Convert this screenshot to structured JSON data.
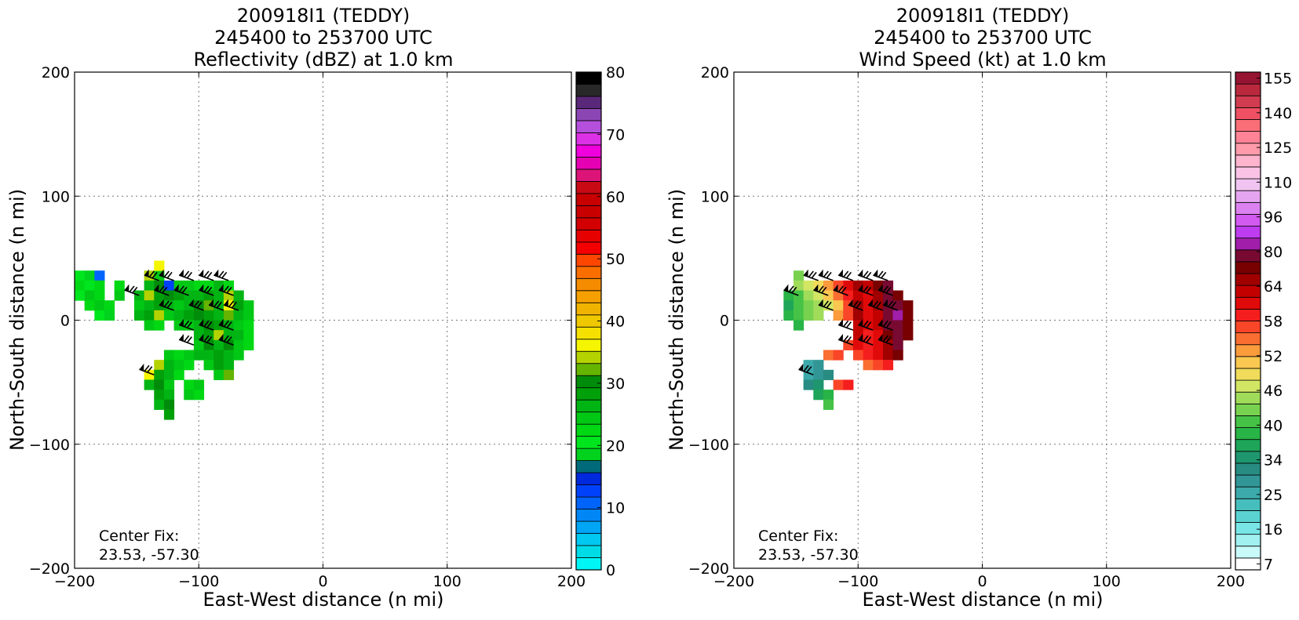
{
  "panels": [
    {
      "title_lines": [
        "200918I1 (TEDDY)",
        "245400 to 253700 UTC",
        "Reflectivity (dBZ) at 1.0 km"
      ],
      "xlabel": "East-West distance (n mi)",
      "ylabel": "North-South distance (n mi)",
      "annotation_lines": [
        "Center Fix:",
        "23.53, -57.30"
      ],
      "colorbar": {
        "label": "Reflectivity (dBZ)",
        "colors": [
          "#00f5f5",
          "#00dce6",
          "#00c8f0",
          "#00a5f5",
          "#0087f5",
          "#0064fa",
          "#0041fa",
          "#0028dc",
          "#00697a",
          "#00d21e",
          "#00e61e",
          "#00d814",
          "#00c814",
          "#00b414",
          "#00a00a",
          "#008c0a",
          "#64b400",
          "#b4d200",
          "#f5f500",
          "#f5e100",
          "#f0c800",
          "#f0b400",
          "#f5a000",
          "#f58c00",
          "#fa6e00",
          "#ff4600",
          "#f50000",
          "#e60000",
          "#d20000",
          "#c80000",
          "#c80000",
          "#c80a14",
          "#dc1478",
          "#e600b4",
          "#f000dc",
          "#dc32e6",
          "#b450dc",
          "#8c46b4",
          "#5a2878",
          "#282828",
          "#000000"
        ],
        "tick_values": [
          0,
          10,
          20,
          30,
          40,
          50,
          60,
          70,
          80
        ],
        "tick_labels": [
          "0",
          "10",
          "20",
          "30",
          "40",
          "50",
          "60",
          "70",
          "80"
        ],
        "min": 0,
        "max": 80
      }
    },
    {
      "title_lines": [
        "200918I1 (TEDDY)",
        "245400 to 253700 UTC",
        "Wind Speed (kt) at 1.0 km"
      ],
      "xlabel": "East-West distance (n mi)",
      "ylabel": "North-South distance (n mi)",
      "annotation_lines": [
        "Center Fix:",
        "23.53, -57.30"
      ],
      "colorbar": {
        "label": "Wind Speed (kt)",
        "colors": [
          "#ffffff",
          "#c8fafa",
          "#a0f0f0",
          "#78e6e6",
          "#5ad2d2",
          "#46bebe",
          "#3caaaa",
          "#329696",
          "#288c82",
          "#1e966e",
          "#1ea55a",
          "#28b446",
          "#46c346",
          "#78d250",
          "#a0dc5a",
          "#d2e664",
          "#f0dc5a",
          "#fac850",
          "#fa9b3c",
          "#fa6e32",
          "#fa4628",
          "#f51e1e",
          "#e10a0a",
          "#c30000",
          "#a00000",
          "#780000",
          "#780a32",
          "#a01eaa",
          "#be3cf0",
          "#d25af0",
          "#dc82f0",
          "#e6a5f0",
          "#f0c3f0",
          "#fac3e6",
          "#ffb4cd",
          "#ff9baa",
          "#ff8296",
          "#fa6e78",
          "#f05064",
          "#d23c50",
          "#b9283c",
          "#961432"
        ],
        "tick_values": [
          7,
          16,
          25,
          34,
          40,
          46,
          52,
          58,
          64,
          80,
          96,
          110,
          125,
          140,
          155
        ],
        "tick_labels": [
          "7",
          "16",
          "25",
          "34",
          "40",
          "46",
          "52",
          "58",
          "64",
          "80",
          "96",
          "110",
          "125",
          "140",
          "155"
        ]
      }
    }
  ],
  "chart_data": [
    {
      "type": "heatmap",
      "title": "200918I1 (TEDDY) 245400 to 253700 UTC Reflectivity (dBZ) at 1.0 km",
      "xlabel": "East-West distance (n mi)",
      "ylabel": "North-South distance (n mi)",
      "xlim": [
        -200,
        200
      ],
      "ylim": [
        -200,
        200
      ],
      "xticks": [
        -200,
        -100,
        0,
        100,
        200
      ],
      "yticks": [
        -200,
        -100,
        0,
        100,
        200
      ],
      "grid": true,
      "cell_size": 8,
      "cells": [
        [
          -196,
          36,
          20
        ],
        [
          -188,
          36,
          18
        ],
        [
          -180,
          36,
          10
        ],
        [
          -196,
          28,
          22
        ],
        [
          -188,
          28,
          20
        ],
        [
          -180,
          28,
          22
        ],
        [
          -196,
          20,
          20
        ],
        [
          -188,
          20,
          24
        ],
        [
          -180,
          20,
          22
        ],
        [
          -188,
          12,
          22
        ],
        [
          -180,
          12,
          24
        ],
        [
          -172,
          12,
          22
        ],
        [
          -180,
          4,
          20
        ],
        [
          -172,
          4,
          18
        ],
        [
          -164,
          28,
          22
        ],
        [
          -164,
          20,
          24
        ],
        [
          -140,
          36,
          34
        ],
        [
          -132,
          36,
          24
        ],
        [
          -132,
          44,
          36
        ],
        [
          -140,
          28,
          26
        ],
        [
          -132,
          28,
          30
        ],
        [
          -124,
          28,
          12
        ],
        [
          -116,
          28,
          24
        ],
        [
          -108,
          28,
          24
        ],
        [
          -100,
          28,
          22
        ],
        [
          -92,
          28,
          22
        ],
        [
          -84,
          28,
          26
        ],
        [
          -76,
          28,
          22
        ],
        [
          -148,
          20,
          26
        ],
        [
          -140,
          20,
          34
        ],
        [
          -132,
          20,
          28
        ],
        [
          -124,
          20,
          30
        ],
        [
          -116,
          20,
          28
        ],
        [
          -108,
          20,
          26
        ],
        [
          -100,
          20,
          26
        ],
        [
          -92,
          20,
          28
        ],
        [
          -84,
          20,
          26
        ],
        [
          -76,
          20,
          34
        ],
        [
          -68,
          20,
          26
        ],
        [
          -148,
          12,
          24
        ],
        [
          -140,
          12,
          26
        ],
        [
          -132,
          12,
          28
        ],
        [
          -124,
          12,
          26
        ],
        [
          -116,
          12,
          24
        ],
        [
          -108,
          12,
          26
        ],
        [
          -100,
          12,
          30
        ],
        [
          -92,
          12,
          32
        ],
        [
          -84,
          12,
          26
        ],
        [
          -76,
          12,
          36
        ],
        [
          -68,
          12,
          28
        ],
        [
          -60,
          12,
          24
        ],
        [
          -148,
          4,
          26
        ],
        [
          -140,
          4,
          28
        ],
        [
          -132,
          4,
          34
        ],
        [
          -124,
          4,
          24
        ],
        [
          -116,
          4,
          26
        ],
        [
          -108,
          4,
          28
        ],
        [
          -100,
          4,
          30
        ],
        [
          -92,
          4,
          28
        ],
        [
          -84,
          4,
          26
        ],
        [
          -76,
          4,
          32
        ],
        [
          -68,
          4,
          26
        ],
        [
          -60,
          4,
          24
        ],
        [
          -140,
          -4,
          24
        ],
        [
          -132,
          -4,
          22
        ],
        [
          -116,
          -4,
          24
        ],
        [
          -108,
          -4,
          24
        ],
        [
          -100,
          -4,
          26
        ],
        [
          -92,
          -4,
          30
        ],
        [
          -84,
          -4,
          28
        ],
        [
          -76,
          -4,
          26
        ],
        [
          -68,
          -4,
          24
        ],
        [
          -60,
          -4,
          22
        ],
        [
          -100,
          -12,
          26
        ],
        [
          -92,
          -12,
          28
        ],
        [
          -84,
          -12,
          34
        ],
        [
          -76,
          -12,
          26
        ],
        [
          -68,
          -12,
          26
        ],
        [
          -60,
          -12,
          22
        ],
        [
          -100,
          -20,
          24
        ],
        [
          -92,
          -20,
          30
        ],
        [
          -84,
          -20,
          26
        ],
        [
          -76,
          -20,
          30
        ],
        [
          -68,
          -20,
          24
        ],
        [
          -60,
          -20,
          22
        ],
        [
          -124,
          -28,
          24
        ],
        [
          -116,
          -28,
          22
        ],
        [
          -108,
          -28,
          24
        ],
        [
          -100,
          -28,
          26
        ],
        [
          -92,
          -28,
          26
        ],
        [
          -84,
          -28,
          28
        ],
        [
          -76,
          -28,
          26
        ],
        [
          -68,
          -28,
          24
        ],
        [
          -132,
          -36,
          34
        ],
        [
          -124,
          -36,
          26
        ],
        [
          -116,
          -36,
          24
        ],
        [
          -108,
          -36,
          22
        ],
        [
          -92,
          -36,
          24
        ],
        [
          -84,
          -36,
          28
        ],
        [
          -76,
          -36,
          26
        ],
        [
          -140,
          -44,
          36
        ],
        [
          -132,
          -44,
          28
        ],
        [
          -124,
          -44,
          26
        ],
        [
          -116,
          -44,
          22
        ],
        [
          -84,
          -44,
          24
        ],
        [
          -76,
          -44,
          32
        ],
        [
          -140,
          -52,
          26
        ],
        [
          -132,
          -52,
          30
        ],
        [
          -124,
          -52,
          24
        ],
        [
          -108,
          -52,
          22
        ],
        [
          -100,
          -52,
          24
        ],
        [
          -132,
          -60,
          28
        ],
        [
          -124,
          -60,
          26
        ],
        [
          -108,
          -60,
          24
        ],
        [
          -100,
          -60,
          22
        ],
        [
          -132,
          -68,
          26
        ],
        [
          -124,
          -68,
          30
        ],
        [
          -124,
          -76,
          28
        ]
      ],
      "wind_barbs": [
        [
          -132,
          32
        ],
        [
          -120,
          32
        ],
        [
          -104,
          32
        ],
        [
          -88,
          32
        ],
        [
          -76,
          32
        ],
        [
          -148,
          20
        ],
        [
          -124,
          20
        ],
        [
          -108,
          20
        ],
        [
          -88,
          20
        ],
        [
          -72,
          20
        ],
        [
          -120,
          8
        ],
        [
          -96,
          8
        ],
        [
          -80,
          8
        ],
        [
          -68,
          8
        ],
        [
          -104,
          -8
        ],
        [
          -88,
          -8
        ],
        [
          -72,
          -8
        ],
        [
          -104,
          -20
        ],
        [
          -88,
          -20
        ],
        [
          -72,
          -20
        ],
        [
          -136,
          -44
        ]
      ]
    },
    {
      "type": "heatmap",
      "title": "200918I1 (TEDDY) 245400 to 253700 UTC Wind Speed (kt) at 1.0 km",
      "xlabel": "East-West distance (n mi)",
      "ylabel": "North-South distance (n mi)",
      "xlim": [
        -200,
        200
      ],
      "ylim": [
        -200,
        200
      ],
      "xticks": [
        -200,
        -100,
        0,
        100,
        200
      ],
      "yticks": [
        -200,
        -100,
        0,
        100,
        200
      ],
      "grid": true,
      "cell_size": 8,
      "cells": [
        [
          -148,
          36,
          44
        ],
        [
          -148,
          28,
          46
        ],
        [
          -140,
          28,
          48
        ],
        [
          -132,
          28,
          50
        ],
        [
          -124,
          28,
          54
        ],
        [
          -116,
          28,
          58
        ],
        [
          -108,
          28,
          62
        ],
        [
          -100,
          28,
          72
        ],
        [
          -92,
          28,
          64
        ],
        [
          -84,
          28,
          76
        ],
        [
          -76,
          28,
          80
        ],
        [
          -156,
          20,
          40
        ],
        [
          -148,
          20,
          42
        ],
        [
          -140,
          20,
          46
        ],
        [
          -132,
          20,
          48
        ],
        [
          -124,
          20,
          52
        ],
        [
          -116,
          20,
          56
        ],
        [
          -108,
          20,
          60
        ],
        [
          -100,
          20,
          64
        ],
        [
          -92,
          20,
          62
        ],
        [
          -84,
          20,
          72
        ],
        [
          -76,
          20,
          80
        ],
        [
          -68,
          20,
          78
        ],
        [
          -156,
          12,
          38
        ],
        [
          -148,
          12,
          42
        ],
        [
          -140,
          12,
          44
        ],
        [
          -132,
          12,
          46
        ],
        [
          -124,
          12,
          48
        ],
        [
          -116,
          12,
          52
        ],
        [
          -108,
          12,
          58
        ],
        [
          -100,
          12,
          72
        ],
        [
          -92,
          12,
          62
        ],
        [
          -84,
          12,
          70
        ],
        [
          -76,
          12,
          80
        ],
        [
          -68,
          12,
          82
        ],
        [
          -60,
          12,
          78
        ],
        [
          -156,
          4,
          40
        ],
        [
          -148,
          4,
          42
        ],
        [
          -140,
          4,
          44
        ],
        [
          -132,
          4,
          46
        ],
        [
          -116,
          4,
          54
        ],
        [
          -108,
          4,
          58
        ],
        [
          -100,
          4,
          70
        ],
        [
          -92,
          4,
          62
        ],
        [
          -84,
          4,
          66
        ],
        [
          -76,
          4,
          80
        ],
        [
          -68,
          4,
          84
        ],
        [
          -60,
          4,
          78
        ],
        [
          -148,
          -4,
          40
        ],
        [
          -100,
          -4,
          66
        ],
        [
          -92,
          -4,
          62
        ],
        [
          -84,
          -4,
          64
        ],
        [
          -76,
          -4,
          80
        ],
        [
          -68,
          -4,
          82
        ],
        [
          -60,
          -4,
          78
        ],
        [
          -100,
          -12,
          64
        ],
        [
          -92,
          -12,
          60
        ],
        [
          -84,
          -12,
          62
        ],
        [
          -76,
          -12,
          74
        ],
        [
          -68,
          -12,
          80
        ],
        [
          -60,
          -12,
          76
        ],
        [
          -108,
          -20,
          58
        ],
        [
          -100,
          -20,
          62
        ],
        [
          -92,
          -20,
          60
        ],
        [
          -84,
          -20,
          62
        ],
        [
          -76,
          -20,
          70
        ],
        [
          -68,
          -20,
          80
        ],
        [
          -100,
          -28,
          58
        ],
        [
          -92,
          -28,
          60
        ],
        [
          -84,
          -28,
          62
        ],
        [
          -76,
          -28,
          68
        ],
        [
          -68,
          -28,
          76
        ],
        [
          -124,
          -28,
          56
        ],
        [
          -116,
          -28,
          58
        ],
        [
          -92,
          -36,
          56
        ],
        [
          -84,
          -36,
          58
        ],
        [
          -76,
          -36,
          60
        ],
        [
          -140,
          -36,
          28
        ],
        [
          -132,
          -36,
          30
        ],
        [
          -140,
          -44,
          26
        ],
        [
          -132,
          -44,
          30
        ],
        [
          -124,
          -44,
          34
        ],
        [
          -140,
          -52,
          32
        ],
        [
          -132,
          -52,
          36
        ],
        [
          -116,
          -52,
          58
        ],
        [
          -108,
          -52,
          60
        ],
        [
          -132,
          -60,
          38
        ],
        [
          -124,
          -60,
          40
        ],
        [
          -124,
          -68,
          42
        ]
      ],
      "wind_barbs": [
        [
          -132,
          32
        ],
        [
          -120,
          32
        ],
        [
          -104,
          32
        ],
        [
          -88,
          32
        ],
        [
          -76,
          32
        ],
        [
          -148,
          20
        ],
        [
          -124,
          20
        ],
        [
          -108,
          20
        ],
        [
          -88,
          20
        ],
        [
          -72,
          20
        ],
        [
          -120,
          8
        ],
        [
          -96,
          8
        ],
        [
          -80,
          8
        ],
        [
          -68,
          8
        ],
        [
          -104,
          -8
        ],
        [
          -88,
          -8
        ],
        [
          -72,
          -8
        ],
        [
          -104,
          -20
        ],
        [
          -88,
          -20
        ],
        [
          -72,
          -20
        ],
        [
          -136,
          -44
        ]
      ]
    }
  ]
}
